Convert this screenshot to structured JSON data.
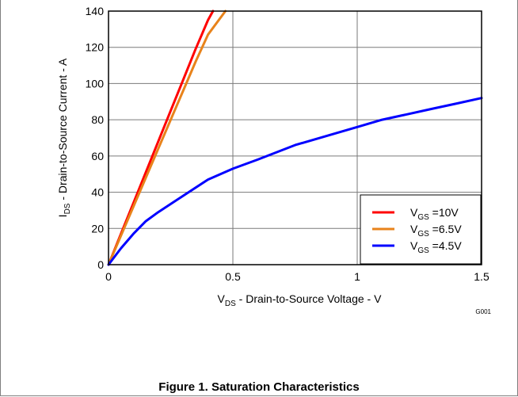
{
  "chart_data": {
    "type": "line",
    "title": "",
    "xlabel": {
      "prefix": "V",
      "sub": "DS",
      "rest": " - Drain-to-Source Voltage - V"
    },
    "ylabel": {
      "prefix": "I",
      "sub": "DS",
      "rest": " - Drain-to-Source Current - A"
    },
    "xlim": [
      0,
      1.5
    ],
    "ylim": [
      0,
      140
    ],
    "xticks": [
      "0",
      "0.5",
      "1",
      "1.5"
    ],
    "xtick_values": [
      0,
      0.5,
      1,
      1.5
    ],
    "yticks": [
      "0",
      "20",
      "40",
      "60",
      "80",
      "100",
      "120",
      "140"
    ],
    "ytick_values": [
      0,
      20,
      40,
      60,
      80,
      100,
      120,
      140
    ],
    "grid": true,
    "legend_position": "bottom-right",
    "series": [
      {
        "name": "VGS =10V",
        "label_prefix": "V",
        "label_sub": "GS",
        "label_rest": " =10V",
        "color": "#ff0000",
        "x": [
          0,
          0.05,
          0.1,
          0.15,
          0.2,
          0.25,
          0.3,
          0.35,
          0.4,
          0.42
        ],
        "y": [
          0,
          17,
          34,
          51,
          68,
          85,
          102,
          119,
          135,
          140
        ]
      },
      {
        "name": "VGS =6.5V",
        "label_prefix": "V",
        "label_sub": "GS",
        "label_rest": " =6.5V",
        "color": "#e8831b",
        "x": [
          0,
          0.05,
          0.1,
          0.15,
          0.2,
          0.25,
          0.3,
          0.35,
          0.4,
          0.47
        ],
        "y": [
          0,
          16,
          32,
          48,
          64,
          80,
          96,
          112,
          127,
          140
        ]
      },
      {
        "name": "VGS =4.5V",
        "label_prefix": "V",
        "label_sub": "GS",
        "label_rest": " =4.5V",
        "color": "#0000ff",
        "x": [
          0,
          0.05,
          0.1,
          0.15,
          0.2,
          0.3,
          0.4,
          0.5,
          0.6,
          0.75,
          0.9,
          1.0,
          1.1,
          1.2,
          1.3,
          1.4,
          1.5
        ],
        "y": [
          0,
          9,
          17,
          24,
          29,
          38,
          47,
          53,
          58,
          66,
          72,
          76,
          80,
          83,
          86,
          89,
          92
        ]
      }
    ]
  },
  "figure_code": "G001",
  "caption": "Figure 1. Saturation Characteristics"
}
